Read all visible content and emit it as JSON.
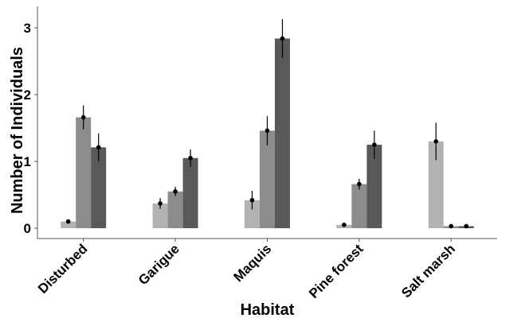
{
  "chart_data": {
    "type": "bar",
    "title": "",
    "xlabel": "Habitat",
    "ylabel": "Number of Individuals",
    "categories": [
      "Disturbed",
      "Garigue",
      "Maquis",
      "Pine forest",
      "Salt marsh"
    ],
    "y_ticks": [
      0,
      1,
      2,
      3
    ],
    "ylim": [
      -0.15,
      3.3
    ],
    "grid": false,
    "legend": "none",
    "series": [
      {
        "color": "#b3b3b3",
        "values": [
          0.1,
          0.37,
          0.42,
          0.05,
          1.3
        ],
        "errors": [
          0.03,
          0.08,
          0.14,
          0.02,
          0.28
        ]
      },
      {
        "color": "#8c8c8c",
        "values": [
          1.66,
          0.55,
          1.46,
          0.66,
          0.03
        ],
        "errors": [
          0.18,
          0.07,
          0.22,
          0.08,
          0.01
        ]
      },
      {
        "color": "#595959",
        "values": [
          1.21,
          1.05,
          2.84,
          1.25,
          0.03
        ],
        "errors": [
          0.21,
          0.13,
          0.29,
          0.21,
          0.01
        ]
      }
    ]
  }
}
